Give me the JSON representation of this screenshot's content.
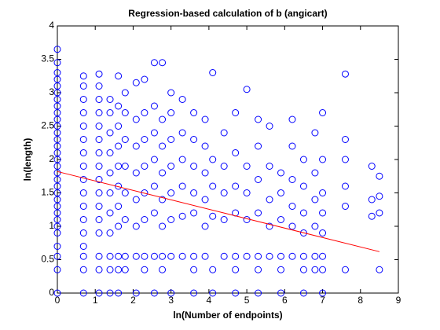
{
  "chart_data": {
    "type": "scatter",
    "title": "Regression-based calculation of b (angicart)",
    "xlabel": "ln(Number of endpoints)",
    "ylabel": "ln(length)",
    "xlim": [
      0,
      9
    ],
    "ylim": [
      0,
      4
    ],
    "xticks": [
      0,
      1,
      2,
      3,
      4,
      5,
      6,
      7,
      8,
      9
    ],
    "yticks": [
      0,
      0.5,
      1,
      1.5,
      2,
      2.5,
      3,
      3.5,
      4
    ],
    "color": "#0000ff",
    "x": [
      0,
      0,
      0,
      0,
      0,
      0,
      0,
      0,
      0,
      0,
      0,
      0,
      0,
      0,
      0,
      0,
      0,
      0,
      0,
      0,
      0,
      0,
      0,
      0,
      0,
      0,
      0,
      0,
      0,
      0,
      0,
      0.69,
      0.69,
      0.69,
      0.69,
      0.69,
      0.69,
      0.69,
      0.69,
      0.69,
      0.69,
      0.69,
      0.69,
      0.69,
      0.69,
      0.69,
      0.69,
      0.69,
      1.1,
      1.1,
      1.1,
      1.1,
      1.1,
      1.1,
      1.1,
      1.1,
      1.1,
      1.1,
      1.1,
      1.1,
      1.1,
      1.1,
      1.1,
      1.1,
      1.39,
      1.39,
      1.39,
      1.39,
      1.39,
      1.39,
      1.39,
      1.39,
      1.39,
      1.39,
      1.39,
      1.61,
      1.61,
      1.61,
      1.61,
      1.61,
      1.61,
      1.61,
      1.61,
      1.61,
      1.61,
      1.61,
      1.79,
      1.79,
      1.79,
      1.79,
      1.79,
      1.79,
      1.79,
      1.79,
      2.08,
      2.08,
      2.08,
      2.08,
      2.08,
      2.08,
      2.08,
      2.08,
      2.3,
      2.3,
      2.3,
      2.3,
      2.3,
      2.3,
      2.3,
      2.3,
      2.56,
      2.56,
      2.56,
      2.56,
      2.56,
      2.56,
      2.56,
      2.56,
      2.77,
      2.77,
      2.77,
      2.77,
      2.77,
      2.77,
      2.77,
      2.77,
      3.0,
      3.0,
      3.0,
      3.0,
      3.0,
      3.0,
      3.0,
      3.0,
      3.3,
      3.3,
      3.3,
      3.3,
      3.3,
      3.3,
      3.6,
      3.6,
      3.6,
      3.6,
      3.6,
      3.6,
      3.6,
      3.6,
      3.9,
      3.9,
      3.9,
      3.9,
      3.9,
      3.9,
      4.1,
      4.1,
      4.1,
      4.1,
      4.1,
      4.1,
      4.4,
      4.4,
      4.4,
      4.4,
      4.4,
      4.7,
      4.7,
      4.7,
      4.7,
      4.7,
      4.7,
      4.7,
      5.0,
      5.0,
      5.0,
      5.0,
      5.0,
      5.3,
      5.3,
      5.3,
      5.3,
      5.3,
      5.3,
      5.3,
      5.6,
      5.6,
      5.6,
      5.6,
      5.6,
      5.9,
      5.9,
      5.9,
      5.9,
      5.9,
      5.9,
      6.2,
      6.2,
      6.2,
      6.2,
      6.2,
      6.2,
      6.5,
      6.5,
      6.5,
      6.5,
      6.5,
      6.5,
      6.5,
      6.8,
      6.8,
      6.8,
      6.8,
      6.8,
      6.8,
      7.0,
      7.0,
      7.0,
      7.0,
      7.0,
      7.0,
      7.0,
      7.0,
      7.6,
      7.6,
      7.6,
      7.6,
      7.6,
      7.6,
      8.3,
      8.3,
      8.3,
      8.5,
      8.5,
      8.5,
      8.5
    ],
    "values": [
      0,
      0.35,
      0.55,
      0.7,
      0.9,
      1,
      1.1,
      1.2,
      1.3,
      1.4,
      1.5,
      1.6,
      1.7,
      1.8,
      1.9,
      2,
      2.1,
      2.2,
      2.3,
      2.4,
      2.5,
      2.6,
      2.7,
      2.8,
      2.9,
      3,
      3.1,
      3.2,
      3.3,
      3.45,
      3.65,
      0,
      0.35,
      0.55,
      0.7,
      0.9,
      1.1,
      1.3,
      1.5,
      1.7,
      1.9,
      2.1,
      2.3,
      2.5,
      2.7,
      2.9,
      3.1,
      3.25,
      0,
      0.35,
      0.55,
      0.9,
      1.1,
      1.3,
      1.5,
      1.7,
      1.9,
      2.1,
      2.3,
      2.5,
      2.7,
      2.9,
      3.1,
      3.28,
      0,
      0.35,
      0.55,
      0.9,
      1.2,
      1.5,
      1.8,
      2.1,
      2.4,
      2.7,
      2.9,
      0,
      0.35,
      0.55,
      1.0,
      1.3,
      1.6,
      1.9,
      2.2,
      2.5,
      2.8,
      3.25,
      0.35,
      0.55,
      1.1,
      1.5,
      1.9,
      2.3,
      2.7,
      3.0,
      0,
      0.55,
      1.0,
      1.4,
      1.8,
      2.2,
      2.6,
      3.15,
      0.35,
      0.55,
      1.1,
      1.5,
      1.9,
      2.3,
      2.7,
      3.2,
      0,
      0.55,
      1.2,
      1.6,
      2.0,
      2.4,
      2.8,
      3.45,
      0.35,
      0.55,
      1.0,
      1.4,
      1.8,
      2.2,
      2.6,
      3.45,
      0,
      0.55,
      1.1,
      1.5,
      1.9,
      2.3,
      2.7,
      3.0,
      0.55,
      1.15,
      1.6,
      2.0,
      2.4,
      2.9,
      0,
      0.35,
      0.55,
      1.2,
      1.5,
      1.9,
      2.3,
      2.7,
      0.55,
      1.0,
      1.4,
      1.8,
      2.2,
      2.6,
      0,
      0.35,
      1.15,
      1.6,
      2.0,
      3.3,
      0.55,
      1.1,
      1.5,
      1.9,
      2.4,
      0,
      0.35,
      0.55,
      1.2,
      1.6,
      2.1,
      2.7,
      0.55,
      1.1,
      1.5,
      1.9,
      3.05,
      0,
      0.35,
      0.55,
      1.2,
      1.7,
      2.2,
      2.6,
      0.55,
      1.0,
      1.4,
      1.9,
      2.5,
      0,
      0.35,
      0.55,
      1.1,
      1.5,
      1.8,
      0.55,
      1.0,
      1.3,
      1.7,
      2.2,
      2.6,
      0,
      0.35,
      0.55,
      0.9,
      1.2,
      1.6,
      2.0,
      0.35,
      0.55,
      1.0,
      1.4,
      1.8,
      2.4,
      0,
      0.35,
      0.55,
      0.9,
      1.2,
      1.5,
      2.0,
      2.7,
      0.35,
      1.3,
      1.6,
      2.0,
      2.3,
      3.28,
      1.15,
      1.4,
      1.9,
      0.35,
      1.2,
      1.45,
      1.75
    ],
    "fit": {
      "color": "#ff0000",
      "x": [
        0,
        8.5
      ],
      "values": [
        1.82,
        0.62
      ]
    }
  }
}
